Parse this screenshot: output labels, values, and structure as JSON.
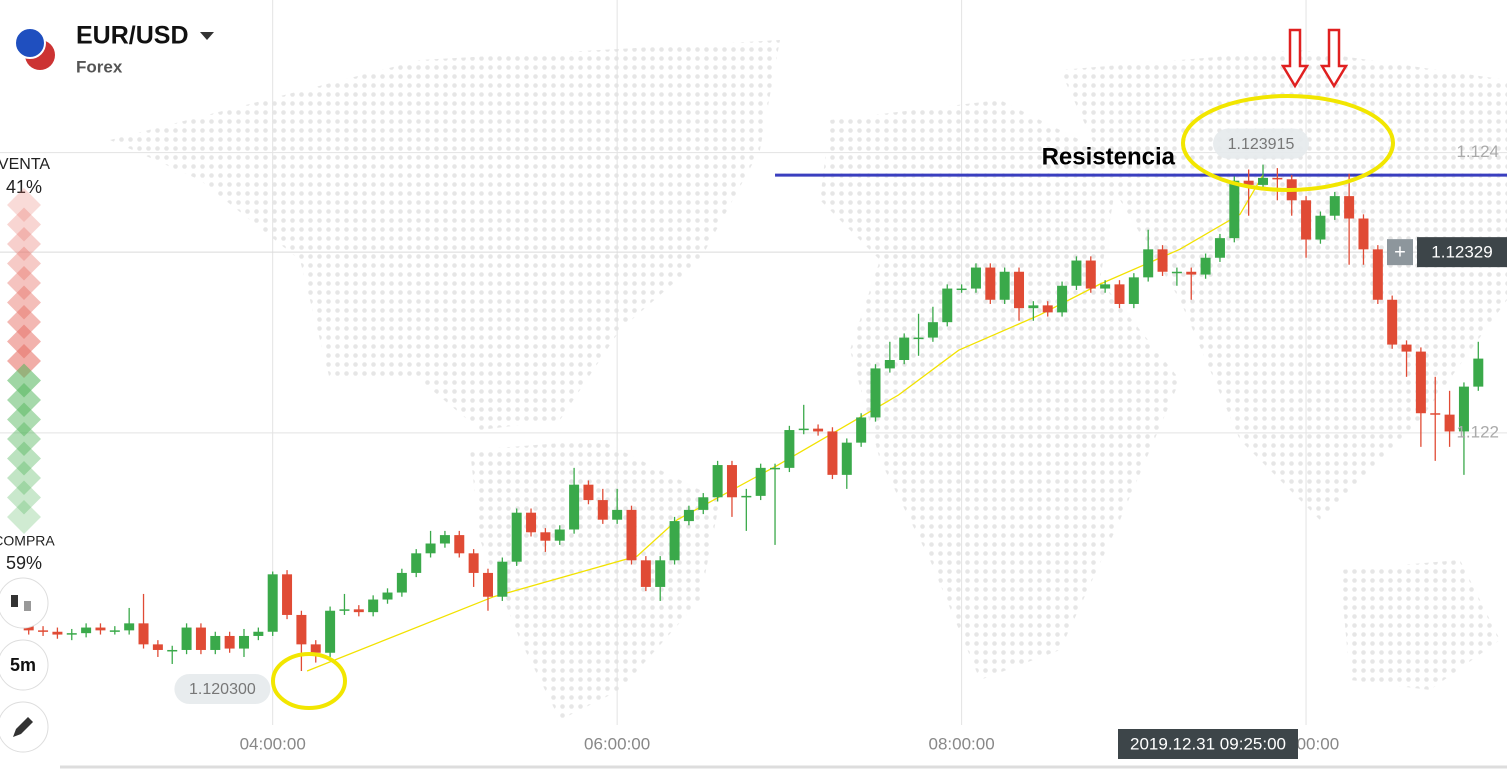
{
  "header": {
    "pair": "EUR/USD",
    "market": "Forex"
  },
  "sentiment": {
    "sell_label": "VENTA",
    "sell_value": "41%",
    "buy_label": "COMPRA",
    "buy_value": "59%"
  },
  "toolbar": {
    "timeframe": "5m"
  },
  "chart_data": {
    "type": "candlestick",
    "x": [
      "02:35:00",
      "02:40:00",
      "02:45:00",
      "02:50:00",
      "02:55:00",
      "03:00:00",
      "03:05:00",
      "03:10:00",
      "03:15:00",
      "03:20:00",
      "03:25:00",
      "03:30:00",
      "03:35:00",
      "03:40:00",
      "03:45:00",
      "03:50:00",
      "03:55:00",
      "04:00:00",
      "04:05:00",
      "04:10:00",
      "04:15:00",
      "04:20:00",
      "04:25:00",
      "04:30:00",
      "04:35:00",
      "04:40:00",
      "04:45:00",
      "04:50:00",
      "04:55:00",
      "05:00:00",
      "05:05:00",
      "05:10:00",
      "05:15:00",
      "05:20:00",
      "05:25:00",
      "05:30:00",
      "05:35:00",
      "05:40:00",
      "05:45:00",
      "05:50:00",
      "05:55:00",
      "06:00:00",
      "06:05:00",
      "06:10:00",
      "06:15:00",
      "06:20:00",
      "06:25:00",
      "06:30:00",
      "06:35:00",
      "06:40:00",
      "06:45:00",
      "06:50:00",
      "06:55:00",
      "07:00:00",
      "07:05:00",
      "07:10:00",
      "07:15:00",
      "07:20:00",
      "07:25:00",
      "07:30:00",
      "07:35:00",
      "07:40:00",
      "07:45:00",
      "07:50:00",
      "07:55:00",
      "08:00:00",
      "08:05:00",
      "08:10:00",
      "08:15:00",
      "08:20:00",
      "08:25:00",
      "08:30:00",
      "08:35:00",
      "08:40:00",
      "08:45:00",
      "08:50:00",
      "08:55:00",
      "09:00:00",
      "09:05:00",
      "09:10:00",
      "09:15:00",
      "09:20:00",
      "09:25:00",
      "09:30:00",
      "09:35:00",
      "09:40:00",
      "09:45:00",
      "09:50:00",
      "09:55:00",
      "10:00:00",
      "10:05:00",
      "10:10:00",
      "10:15:00",
      "10:20:00",
      "10:25:00",
      "10:30:00",
      "10:35:00",
      "10:40:00",
      "10:45:00",
      "10:50:00",
      "10:55:00",
      "11:00:00"
    ],
    "open": [
      1.12062,
      1.12059,
      1.12058,
      1.12056,
      1.12057,
      1.12061,
      1.12059,
      1.12059,
      1.12064,
      1.12049,
      1.12045,
      1.12045,
      1.12061,
      1.12045,
      1.12055,
      1.12046,
      1.12055,
      1.12058,
      1.12099,
      1.1207,
      1.12049,
      1.12043,
      1.12073,
      1.12074,
      1.12072,
      1.12081,
      1.12086,
      1.121,
      1.12114,
      1.12121,
      1.12127,
      1.12114,
      1.121,
      1.12083,
      1.12108,
      1.12143,
      1.12129,
      1.12123,
      1.12131,
      1.12163,
      1.12152,
      1.12138,
      1.12145,
      1.12109,
      1.1209,
      1.12109,
      1.12137,
      1.12145,
      1.12154,
      1.12177,
      1.12154,
      1.12155,
      1.12175,
      1.12175,
      1.12202,
      1.12203,
      1.12201,
      1.1217,
      1.12193,
      1.12211,
      1.12246,
      1.12252,
      1.12268,
      1.12268,
      1.12279,
      1.12303,
      1.12303,
      1.12318,
      1.12295,
      1.12315,
      1.12289,
      1.12291,
      1.12286,
      1.12305,
      1.12323,
      1.12303,
      1.12306,
      1.12292,
      1.12311,
      1.12331,
      1.12315,
      1.12315,
      1.12313,
      1.12325,
      1.12339,
      1.1238,
      1.12377,
      1.12382,
      1.12381,
      1.12366,
      1.12338,
      1.12355,
      1.12369,
      1.12353,
      1.12331,
      1.12295,
      1.12263,
      1.12258,
      1.12214,
      1.12213,
      1.12201,
      1.12233
    ],
    "high": [
      1.12065,
      1.12062,
      1.12061,
      1.1206,
      1.12064,
      1.12064,
      1.12062,
      1.12075,
      1.12085,
      1.12052,
      1.12048,
      1.12064,
      1.12064,
      1.12058,
      1.12058,
      1.1206,
      1.12061,
      1.12101,
      1.12102,
      1.12073,
      1.12052,
      1.12076,
      1.12085,
      1.12077,
      1.12084,
      1.12089,
      1.12103,
      1.12117,
      1.1213,
      1.1213,
      1.1213,
      1.12117,
      1.12103,
      1.12111,
      1.12146,
      1.12146,
      1.12132,
      1.12134,
      1.12175,
      1.12166,
      1.1216,
      1.1216,
      1.12148,
      1.12112,
      1.12112,
      1.1214,
      1.12148,
      1.12157,
      1.1218,
      1.1218,
      1.1216,
      1.12178,
      1.12178,
      1.12205,
      1.1222,
      1.12206,
      1.12204,
      1.12196,
      1.12214,
      1.12249,
      1.12265,
      1.12271,
      1.12285,
      1.1229,
      1.12306,
      1.12306,
      1.12321,
      1.12321,
      1.12318,
      1.12318,
      1.12294,
      1.12294,
      1.12308,
      1.12326,
      1.12326,
      1.12309,
      1.12309,
      1.12314,
      1.12345,
      1.12334,
      1.12318,
      1.12318,
      1.12328,
      1.12342,
      1.12383,
      1.12388,
      1.123915,
      1.12389,
      1.12384,
      1.12369,
      1.12358,
      1.12372,
      1.12385,
      1.12356,
      1.12334,
      1.12298,
      1.12266,
      1.12261,
      1.1224,
      1.1223,
      1.12236,
      1.12265
    ],
    "low": [
      1.12056,
      1.12055,
      1.12053,
      1.12052,
      1.12054,
      1.12056,
      1.12056,
      1.12056,
      1.12046,
      1.1204,
      1.12035,
      1.12042,
      1.12042,
      1.12042,
      1.12043,
      1.1204,
      1.12052,
      1.12055,
      1.12067,
      1.1203,
      1.12036,
      1.1204,
      1.1207,
      1.12069,
      1.12069,
      1.12078,
      1.12083,
      1.12097,
      1.12111,
      1.12118,
      1.12111,
      1.1209,
      1.12073,
      1.1208,
      1.12105,
      1.12126,
      1.12115,
      1.1212,
      1.12128,
      1.12149,
      1.12135,
      1.12135,
      1.12106,
      1.12087,
      1.1208,
      1.12106,
      1.12134,
      1.12142,
      1.12151,
      1.1214,
      1.1213,
      1.12152,
      1.1212,
      1.12172,
      1.12199,
      1.12198,
      1.12167,
      1.1216,
      1.1219,
      1.12208,
      1.12243,
      1.12249,
      1.12255,
      1.12265,
      1.12276,
      1.123,
      1.123,
      1.12292,
      1.12292,
      1.1228,
      1.1228,
      1.12283,
      1.12283,
      1.12302,
      1.123,
      1.123,
      1.12289,
      1.12289,
      1.12308,
      1.12312,
      1.12305,
      1.12295,
      1.1231,
      1.12322,
      1.12336,
      1.12355,
      1.12374,
      1.12366,
      1.12355,
      1.12325,
      1.12335,
      1.12352,
      1.1232,
      1.1232,
      1.12292,
      1.1226,
      1.1224,
      1.1219,
      1.1218,
      1.1219,
      1.1217,
      1.1223
    ],
    "close": [
      1.12059,
      1.12058,
      1.12056,
      1.12057,
      1.12061,
      1.12059,
      1.12059,
      1.12064,
      1.12049,
      1.12045,
      1.12045,
      1.12061,
      1.12045,
      1.12055,
      1.12046,
      1.12055,
      1.12058,
      1.12099,
      1.1207,
      1.12049,
      1.12043,
      1.12073,
      1.12074,
      1.12072,
      1.12081,
      1.12086,
      1.121,
      1.12114,
      1.12121,
      1.12127,
      1.12114,
      1.121,
      1.12083,
      1.12108,
      1.12143,
      1.12129,
      1.12123,
      1.12131,
      1.12163,
      1.12152,
      1.12138,
      1.12145,
      1.12109,
      1.1209,
      1.12109,
      1.12137,
      1.12145,
      1.12154,
      1.12177,
      1.12154,
      1.12155,
      1.12175,
      1.12175,
      1.12202,
      1.12203,
      1.12201,
      1.1217,
      1.12193,
      1.12211,
      1.12246,
      1.12252,
      1.12268,
      1.12268,
      1.12279,
      1.12303,
      1.12303,
      1.12318,
      1.12295,
      1.12315,
      1.12289,
      1.12291,
      1.12286,
      1.12305,
      1.12323,
      1.12303,
      1.12306,
      1.12292,
      1.12311,
      1.12331,
      1.12315,
      1.12315,
      1.12313,
      1.12325,
      1.12339,
      1.1238,
      1.12377,
      1.12382,
      1.12381,
      1.12366,
      1.12338,
      1.12355,
      1.12369,
      1.12353,
      1.12331,
      1.12295,
      1.12263,
      1.12258,
      1.12214,
      1.12213,
      1.12201,
      1.12233,
      1.12253
    ],
    "up_color": "#3aa94a",
    "down_color": "#e04b35",
    "xlim": [
      "02:25:00",
      "11:10:00"
    ],
    "xticks": [
      "04:00:00",
      "06:00:00",
      "08:00:00",
      "10:00:00"
    ],
    "ylim": [
      1.12,
      1.12509
    ],
    "yticks": [
      1.124,
      1.122
    ],
    "grid": true,
    "price_annotations": [
      {
        "value": 1.123915,
        "at": "high"
      },
      {
        "value": 1.1203,
        "label": "1.120300",
        "at": "low"
      }
    ],
    "current_price": 1.12329,
    "cursor_label": "2019.12.31 09:25:00",
    "resistance": {
      "label": "Resistencia",
      "value": 1.12384,
      "color": "#3a3fbf",
      "x_start": "06:55:00"
    },
    "overlay": {
      "color": "#f2e200",
      "x": [
        "04:12:00",
        "05:17:00",
        "06:07:00",
        "06:21:00",
        "06:56:00",
        "07:38:00",
        "07:59:00",
        "08:27:00",
        "08:48:00",
        "09:16:00",
        "09:37:00",
        "09:45:00"
      ],
      "values": [
        1.1203,
        1.12083,
        1.12112,
        1.12138,
        1.12177,
        1.12227,
        1.12259,
        1.12284,
        1.12306,
        1.12331,
        1.12356,
        1.12384
      ]
    }
  }
}
